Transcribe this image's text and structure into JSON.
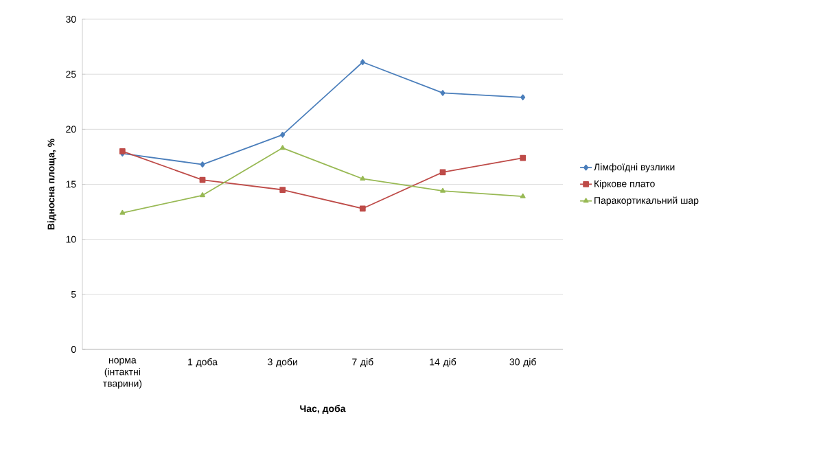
{
  "chart_data": {
    "type": "line",
    "xlabel": "Час, доба",
    "ylabel": "Відносна площа, %",
    "categories": [
      "норма (інтактні тварини)",
      "1 доба",
      "3 доби",
      "7 діб",
      "14 діб",
      "30 діб"
    ],
    "series": [
      {
        "name": "Лімфоїдні вузлики",
        "color": "#4a7ebb",
        "marker": "diamond",
        "values": [
          17.8,
          16.8,
          19.5,
          26.1,
          23.3,
          22.9
        ]
      },
      {
        "name": "Кіркове плато",
        "color": "#be4b48",
        "marker": "square",
        "values": [
          18.0,
          15.4,
          14.5,
          12.8,
          16.1,
          17.4
        ]
      },
      {
        "name": "Паракортикальний шар",
        "color": "#98b954",
        "marker": "triangle",
        "values": [
          12.4,
          14.0,
          18.3,
          15.5,
          14.4,
          13.9
        ]
      }
    ],
    "ylim": [
      0,
      30
    ],
    "yticks": [
      0,
      5,
      10,
      15,
      20,
      25,
      30
    ],
    "grid": "y",
    "legend": "right",
    "line_style": "solid"
  }
}
